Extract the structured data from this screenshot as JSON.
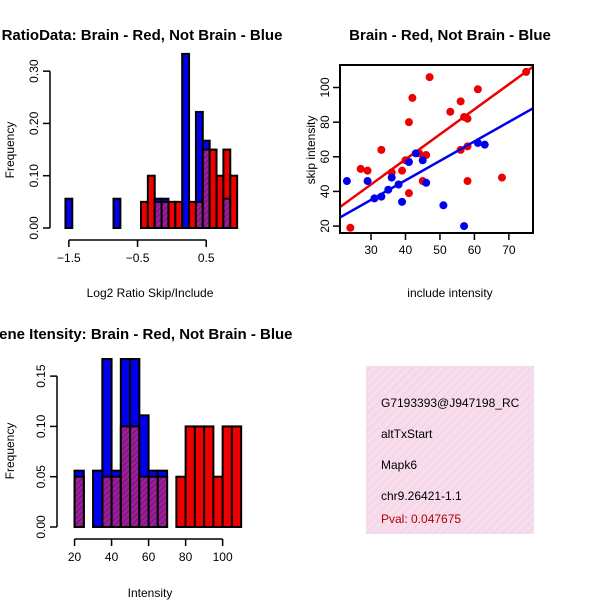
{
  "colors": {
    "red": "#ee0000",
    "blue": "#0000ee",
    "overlap": "#9b1f9b",
    "panel_bg": "#f7dcec",
    "pval": "#b00000"
  },
  "chart_data": [
    {
      "type": "bar",
      "title": "RatioData: Brain - Red, Not Brain - Blue",
      "xlabel": "Log2 Ratio Skip/Include",
      "ylabel": "Frequency",
      "xlim": [
        -1.6,
        1.05
      ],
      "ylim": [
        0,
        0.35
      ],
      "xticks": [
        -1.5,
        -0.5,
        0.5
      ],
      "xtick_labels": [
        "-1.5",
        "-0.5",
        "0.5"
      ],
      "yticks": [
        0,
        0.1,
        0.2,
        0.3
      ],
      "ytick_labels": [
        "0.00",
        "0.10",
        "0.20",
        "0.30"
      ],
      "series": [
        {
          "name": "Brain",
          "color": "red",
          "bars": [
            {
              "x0": -0.45,
              "x1": -0.35,
              "value": 0.05
            },
            {
              "x0": -0.35,
              "x1": -0.25,
              "value": 0.1
            },
            {
              "x0": -0.25,
              "x1": -0.15,
              "value": 0.05
            },
            {
              "x0": -0.15,
              "x1": -0.05,
              "value": 0.05
            },
            {
              "x0": -0.05,
              "x1": 0.05,
              "value": 0.05
            },
            {
              "x0": 0.05,
              "x1": 0.15,
              "value": 0.05
            },
            {
              "x0": 0.25,
              "x1": 0.35,
              "value": 0.05
            },
            {
              "x0": 0.35,
              "x1": 0.45,
              "value": 0.05
            },
            {
              "x0": 0.45,
              "x1": 0.55,
              "value": 0.15
            },
            {
              "x0": 0.55,
              "x1": 0.65,
              "value": 0.15
            },
            {
              "x0": 0.65,
              "x1": 0.75,
              "value": 0.1
            },
            {
              "x0": 0.75,
              "x1": 0.85,
              "value": 0.15
            },
            {
              "x0": 0.85,
              "x1": 0.95,
              "value": 0.1
            }
          ]
        },
        {
          "name": "Not Brain",
          "color": "blue",
          "bars": [
            {
              "x0": -1.55,
              "x1": -1.45,
              "value": 0.056
            },
            {
              "x0": -0.85,
              "x1": -0.75,
              "value": 0.056
            },
            {
              "x0": -0.25,
              "x1": -0.15,
              "value": 0.056
            },
            {
              "x0": -0.15,
              "x1": -0.05,
              "value": 0.056
            },
            {
              "x0": 0.15,
              "x1": 0.25,
              "value": 0.333
            },
            {
              "x0": 0.35,
              "x1": 0.45,
              "value": 0.222
            },
            {
              "x0": 0.45,
              "x1": 0.55,
              "value": 0.167
            },
            {
              "x0": 0.75,
              "x1": 0.85,
              "value": 0.056
            }
          ]
        }
      ]
    },
    {
      "type": "scatter",
      "title": "Brain - Red, Not Brain - Blue",
      "xlabel": "include intensity",
      "ylabel": "skip intensity",
      "xlim": [
        21,
        77
      ],
      "ylim": [
        16,
        113
      ],
      "xticks": [
        30,
        40,
        50,
        60,
        70
      ],
      "yticks": [
        20,
        40,
        60,
        80,
        100
      ],
      "series": [
        {
          "name": "Brain",
          "color": "red",
          "points": [
            [
              24,
              19
            ],
            [
              27,
              53
            ],
            [
              29,
              52
            ],
            [
              33,
              64
            ],
            [
              36,
              51
            ],
            [
              39,
              52
            ],
            [
              40,
              58
            ],
            [
              41,
              80
            ],
            [
              41,
              39
            ],
            [
              42,
              94
            ],
            [
              44,
              62
            ],
            [
              45,
              46
            ],
            [
              46,
              61
            ],
            [
              47,
              106
            ],
            [
              53,
              86
            ],
            [
              56,
              92
            ],
            [
              56,
              64
            ],
            [
              57,
              83
            ],
            [
              58,
              82
            ],
            [
              58,
              66
            ],
            [
              58,
              46
            ],
            [
              61,
              99
            ],
            [
              68,
              48
            ],
            [
              75,
              109
            ]
          ],
          "fit": [
            [
              21,
              31
            ],
            [
              77,
              112
            ]
          ]
        },
        {
          "name": "Not Brain",
          "color": "blue",
          "points": [
            [
              23,
              46
            ],
            [
              29,
              46
            ],
            [
              31,
              36
            ],
            [
              33,
              37
            ],
            [
              35,
              41
            ],
            [
              36,
              48
            ],
            [
              38,
              44
            ],
            [
              39,
              34
            ],
            [
              41,
              57
            ],
            [
              43,
              62
            ],
            [
              45,
              58
            ],
            [
              46,
              45
            ],
            [
              51,
              32
            ],
            [
              57,
              20
            ],
            [
              61,
              68
            ],
            [
              63,
              67
            ]
          ],
          "fit": [
            [
              21,
              25
            ],
            [
              77,
              88
            ]
          ]
        }
      ]
    },
    {
      "type": "bar",
      "title": "Gene Itensity: Brain - Red, Not Brain - Blue",
      "xlabel": "Intensity",
      "ylabel": "Frequency",
      "xlim": [
        17,
        111
      ],
      "ylim": [
        0,
        0.17
      ],
      "xticks": [
        20,
        40,
        60,
        80,
        100
      ],
      "yticks": [
        0,
        0.05,
        0.1,
        0.15
      ],
      "ytick_labels": [
        "0.00",
        "0.05",
        "0.10",
        "0.15"
      ],
      "series": [
        {
          "name": "Brain",
          "color": "red",
          "bars": [
            {
              "x0": 20,
              "x1": 25,
              "value": 0.05
            },
            {
              "x0": 35,
              "x1": 40,
              "value": 0.05
            },
            {
              "x0": 40,
              "x1": 45,
              "value": 0.05
            },
            {
              "x0": 45,
              "x1": 50,
              "value": 0.1
            },
            {
              "x0": 50,
              "x1": 55,
              "value": 0.1
            },
            {
              "x0": 55,
              "x1": 60,
              "value": 0.05
            },
            {
              "x0": 60,
              "x1": 65,
              "value": 0.05
            },
            {
              "x0": 65,
              "x1": 70,
              "value": 0.05
            },
            {
              "x0": 75,
              "x1": 80,
              "value": 0.05
            },
            {
              "x0": 80,
              "x1": 85,
              "value": 0.1
            },
            {
              "x0": 85,
              "x1": 90,
              "value": 0.1
            },
            {
              "x0": 90,
              "x1": 95,
              "value": 0.1
            },
            {
              "x0": 95,
              "x1": 100,
              "value": 0.05
            },
            {
              "x0": 100,
              "x1": 105,
              "value": 0.1
            },
            {
              "x0": 105,
              "x1": 110,
              "value": 0.1
            }
          ]
        },
        {
          "name": "Not Brain",
          "color": "blue",
          "bars": [
            {
              "x0": 20,
              "x1": 25,
              "value": 0.056
            },
            {
              "x0": 30,
              "x1": 35,
              "value": 0.056
            },
            {
              "x0": 35,
              "x1": 40,
              "value": 0.167
            },
            {
              "x0": 40,
              "x1": 45,
              "value": 0.056
            },
            {
              "x0": 45,
              "x1": 50,
              "value": 0.167
            },
            {
              "x0": 50,
              "x1": 55,
              "value": 0.167
            },
            {
              "x0": 55,
              "x1": 60,
              "value": 0.111
            },
            {
              "x0": 60,
              "x1": 65,
              "value": 0.056
            },
            {
              "x0": 65,
              "x1": 70,
              "value": 0.056
            }
          ]
        }
      ]
    }
  ],
  "info_panel": {
    "probe_id": "G7193393@J947198_RC",
    "event_type": "altTxStart",
    "gene": "Mapk6",
    "location": "chr9.26421-1.1",
    "pval": "Pval: 0.047675"
  }
}
